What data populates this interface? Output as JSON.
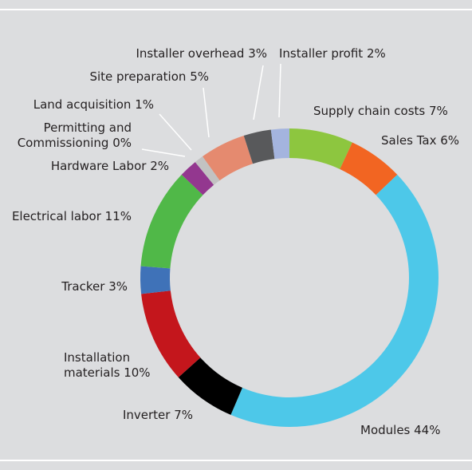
{
  "chart_data": {
    "type": "donut",
    "categories": [
      "Supply chain costs",
      "Sales Tax",
      "Modules",
      "Inverter",
      "Installation materials",
      "Tracker",
      "Electrical labor",
      "Hardware Labor",
      "Permitting and Commissioning",
      "Land acquisition",
      "Site preparation",
      "Installer overhead",
      "Installer profit"
    ],
    "values": [
      7,
      6,
      44,
      7,
      10,
      3,
      11,
      2,
      0,
      1,
      5,
      3,
      2
    ],
    "value_labels": [
      "7%",
      "6%",
      "44%",
      "7%",
      "10%",
      "3%",
      "11%",
      "2%",
      "0%",
      "1%",
      "5%",
      "3%",
      "2%"
    ],
    "colors": [
      "#8dc63f",
      "#f26522",
      "#4dc8e9",
      "#000000",
      "#c4161c",
      "#3f72b8",
      "#50b848",
      "#93378f",
      "#cfcfcf",
      "#c2c2c2",
      "#e58a6f",
      "#58595b",
      "#a4b4de"
    ]
  }
}
